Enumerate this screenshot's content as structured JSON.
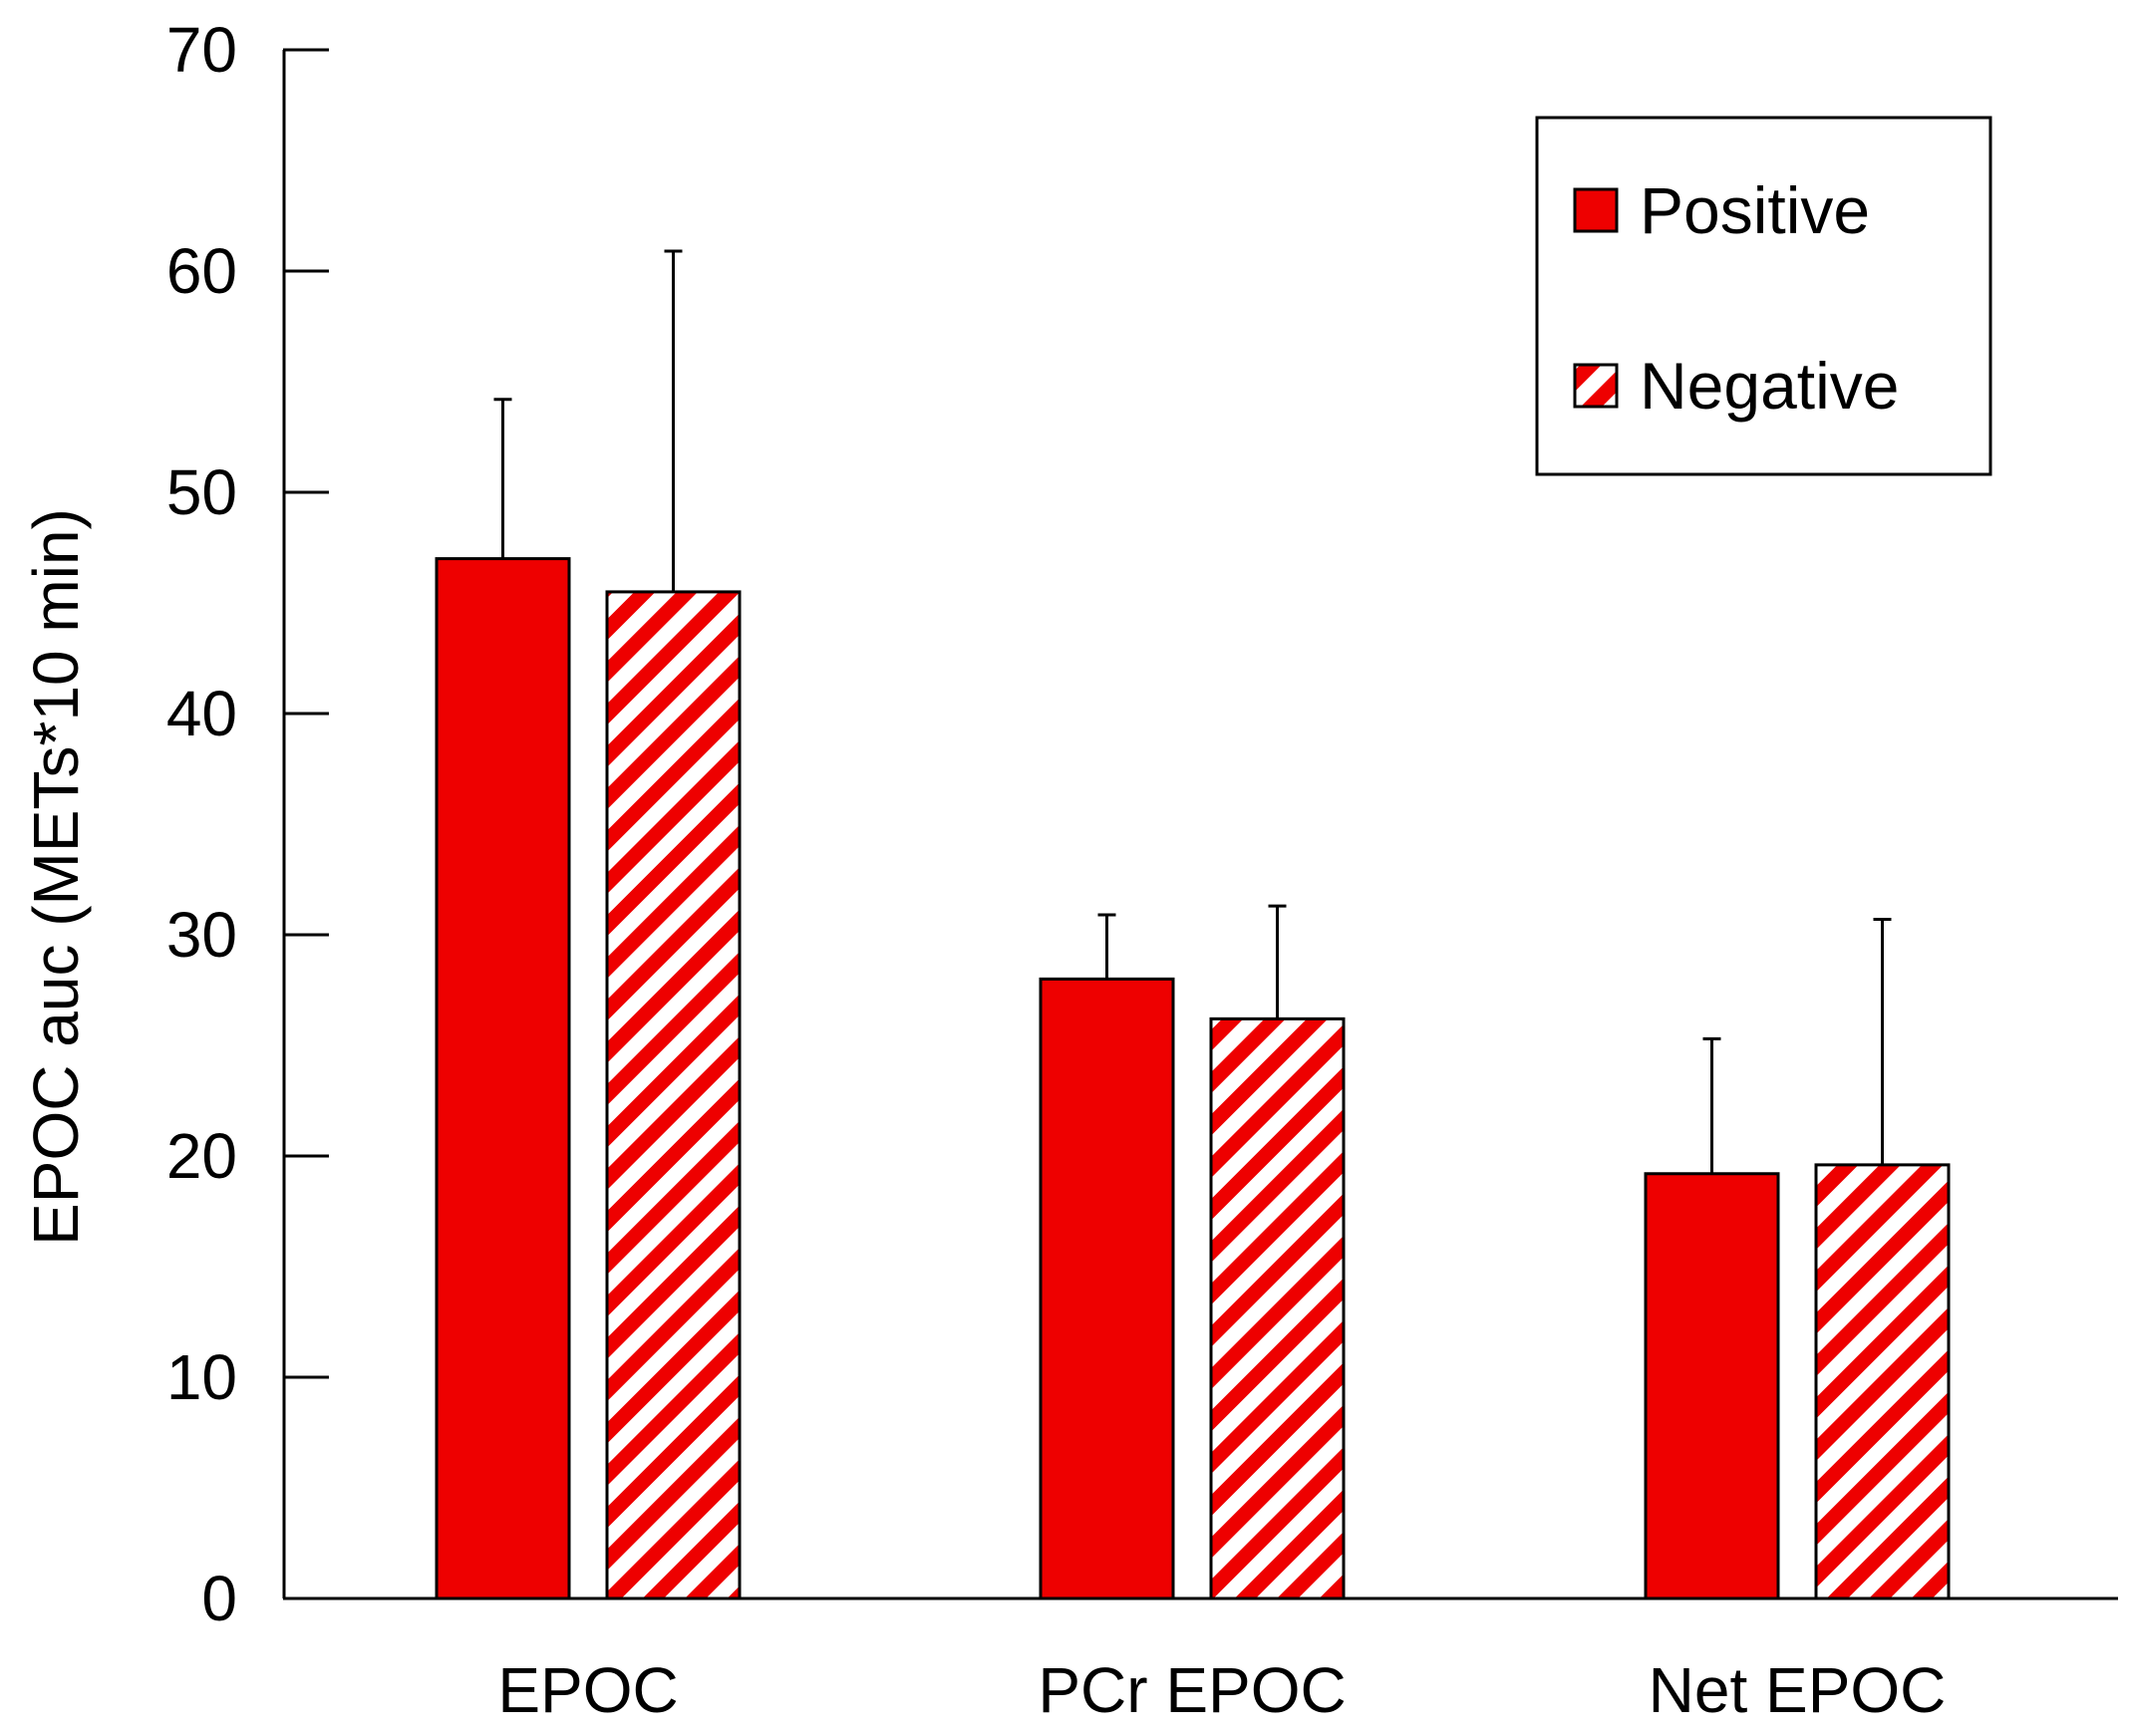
{
  "chart_data": {
    "type": "bar",
    "title": "",
    "xlabel": "",
    "ylabel": "EPOC auc (METs*10 min)",
    "ylim": [
      0,
      70
    ],
    "yticks": [
      0,
      10,
      20,
      30,
      40,
      50,
      60,
      70
    ],
    "categories": [
      "EPOC",
      "PCr EPOC",
      "Net EPOC"
    ],
    "series": [
      {
        "name": "Positive",
        "pattern": "solid",
        "color": "#ee0000",
        "values": [
          47,
          28,
          19.2
        ],
        "error_upper": [
          7.2,
          2.9,
          6.1
        ]
      },
      {
        "name": "Negative",
        "pattern": "diagonal-stripes",
        "color": "#ee0000",
        "values": [
          45.5,
          26.2,
          19.6
        ],
        "error_upper": [
          15.4,
          5.1,
          11.1
        ]
      }
    ],
    "legend": {
      "position": "top-right"
    },
    "grid": false
  }
}
